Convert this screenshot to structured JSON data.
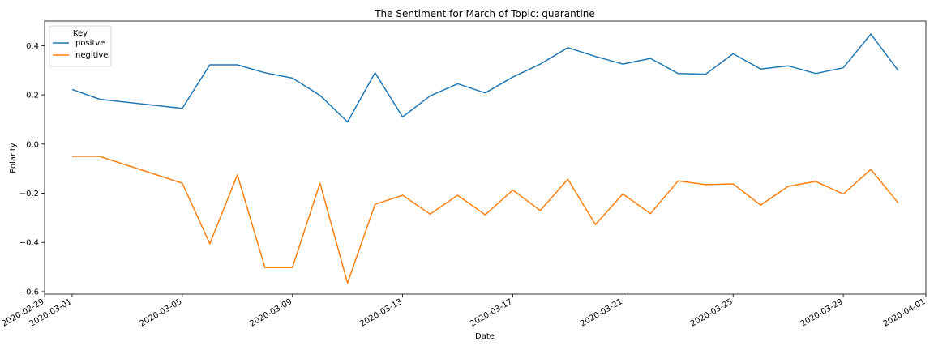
{
  "chart_data": {
    "type": "line",
    "title": "The Sentiment for March of Topic: quarantine",
    "xlabel": "Date",
    "ylabel": "Polarity",
    "xlim": [
      "2020-02-29",
      "2020-04-01"
    ],
    "ylim": [
      -0.61,
      0.5
    ],
    "grid": false,
    "legend": {
      "title": "Key",
      "placement": "top-left"
    },
    "x_ticks": [
      "2020-02-29",
      "2020-03-01",
      "2020-03-05",
      "2020-03-09",
      "2020-03-13",
      "2020-03-17",
      "2020-03-21",
      "2020-03-25",
      "2020-03-29",
      "2020-04-01"
    ],
    "y_ticks": [
      "0.4",
      "0.2",
      "0.0",
      "−0.2",
      "−0.4",
      "−0.6"
    ],
    "y_tick_values": [
      0.4,
      0.2,
      0.0,
      -0.2,
      -0.4,
      -0.6
    ],
    "x": [
      "2020-03-01",
      "2020-03-02",
      "2020-03-05",
      "2020-03-06",
      "2020-03-07",
      "2020-03-08",
      "2020-03-09",
      "2020-03-10",
      "2020-03-11",
      "2020-03-12",
      "2020-03-13",
      "2020-03-14",
      "2020-03-15",
      "2020-03-16",
      "2020-03-17",
      "2020-03-18",
      "2020-03-19",
      "2020-03-20",
      "2020-03-21",
      "2020-03-22",
      "2020-03-23",
      "2020-03-24",
      "2020-03-25",
      "2020-03-26",
      "2020-03-27",
      "2020-03-28",
      "2020-03-29",
      "2020-03-30",
      "2020-03-31"
    ],
    "series": [
      {
        "name": "positve",
        "color": "#1f77b4",
        "values": [
          0.222,
          0.182,
          0.145,
          0.322,
          0.322,
          0.29,
          0.268,
          0.198,
          0.09,
          0.29,
          0.11,
          0.196,
          0.245,
          0.208,
          0.272,
          0.325,
          0.392,
          0.356,
          0.325,
          0.348,
          0.287,
          0.284,
          0.367,
          0.305,
          0.318,
          0.287,
          0.31,
          0.447,
          0.298
        ]
      },
      {
        "name": "negitive",
        "color": "#ff7f0e",
        "values": [
          -0.05,
          -0.05,
          -0.159,
          -0.405,
          -0.125,
          -0.502,
          -0.502,
          -0.159,
          -0.565,
          -0.245,
          -0.208,
          -0.285,
          -0.208,
          -0.288,
          -0.187,
          -0.27,
          -0.143,
          -0.327,
          -0.203,
          -0.283,
          -0.15,
          -0.165,
          -0.162,
          -0.248,
          -0.172,
          -0.152,
          -0.203,
          -0.103,
          -0.24
        ]
      }
    ]
  }
}
